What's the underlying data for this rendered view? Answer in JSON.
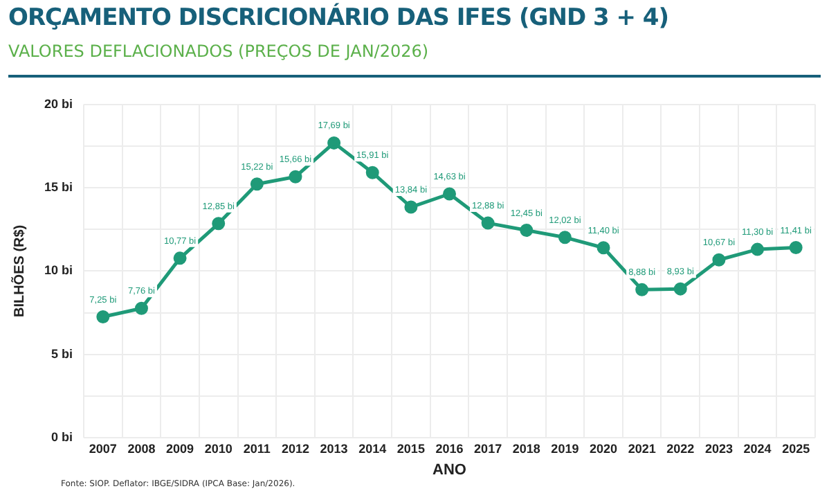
{
  "chart_data": {
    "type": "line",
    "title": "ORÇAMENTO DISCRICIONÁRIO DAS IFES (GND 3 + 4)",
    "subtitle": "VALORES DEFLACIONADOS (PREÇOS DE JAN/2026)",
    "xlabel": "ANO",
    "ylabel": "BILHÕES (R$)",
    "categories": [
      "2007",
      "2008",
      "2009",
      "2010",
      "2011",
      "2012",
      "2013",
      "2014",
      "2015",
      "2016",
      "2017",
      "2018",
      "2019",
      "2020",
      "2021",
      "2022",
      "2023",
      "2024",
      "2025"
    ],
    "series": [
      {
        "color": "#1f9a78",
        "values": [
          7.25,
          7.76,
          10.77,
          12.85,
          15.22,
          15.66,
          17.69,
          15.91,
          13.84,
          14.63,
          12.88,
          12.45,
          12.02,
          11.4,
          8.88,
          8.93,
          10.67,
          11.3,
          11.41
        ],
        "value_labels": [
          "7,25 bi",
          "7,76 bi",
          "10,77 bi",
          "12,85 bi",
          "15,22 bi",
          "15,66 bi",
          "17,69 bi",
          "15,91 bi",
          "13,84 bi",
          "14,63 bi",
          "12,88 bi",
          "12,45 bi",
          "12,02 bi",
          "11,40 bi",
          "8,88 bi",
          "8,93 bi",
          "10,67 bi",
          "11,30 bi",
          "11,41 bi"
        ]
      }
    ],
    "ylim": [
      0,
      20
    ],
    "yticks": [
      {
        "value": 0,
        "label": "0 bi"
      },
      {
        "value": 2.5,
        "label": null
      },
      {
        "value": 5,
        "label": "5 bi"
      },
      {
        "value": 7.5,
        "label": null
      },
      {
        "value": 10,
        "label": "10 bi"
      },
      {
        "value": 12.5,
        "label": null
      },
      {
        "value": 15,
        "label": "15 bi"
      },
      {
        "value": 17.5,
        "label": null
      },
      {
        "value": 20,
        "label": "20 bi"
      }
    ],
    "grid": true,
    "legend": false,
    "marker": "circle",
    "line_style": "solid",
    "annotations": [
      "Fonte: SIOP. Deflator: IBGE/SIDRA (IPCA Base: Jan/2026)."
    ]
  }
}
